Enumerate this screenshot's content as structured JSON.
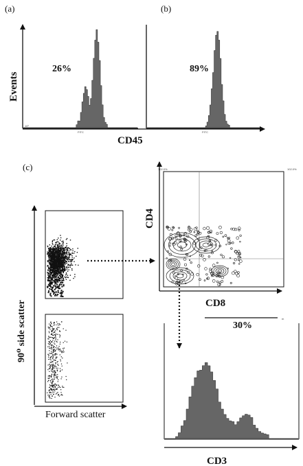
{
  "figure": {
    "panel_a": {
      "label": "(a)",
      "percent": "26%",
      "y_label": "Events",
      "x_label": "CD45",
      "hist": [
        0,
        0,
        0,
        0,
        0,
        0,
        0,
        0,
        0,
        0,
        0,
        0,
        0,
        0,
        0,
        0,
        0,
        0,
        0,
        0,
        0,
        0,
        0,
        0,
        0,
        0,
        0,
        0,
        0,
        0,
        0,
        0,
        0,
        0,
        0,
        0,
        0,
        0.02,
        0.05,
        0.1,
        0.18,
        0.28,
        0.36,
        0.42,
        0.38,
        0.3,
        0.26,
        0.32,
        0.5,
        0.72,
        0.9,
        1.0,
        0.92,
        0.72,
        0.45,
        0.24,
        0.1,
        0.04,
        0.01,
        0,
        0,
        0,
        0,
        0,
        0,
        0,
        0,
        0,
        0,
        0,
        0,
        0,
        0,
        0,
        0,
        0,
        0,
        0,
        0,
        0
      ]
    },
    "panel_b": {
      "label": "(b)",
      "percent": "89%",
      "hist": [
        0,
        0,
        0,
        0,
        0,
        0,
        0,
        0,
        0,
        0,
        0,
        0,
        0,
        0,
        0,
        0,
        0,
        0,
        0,
        0,
        0,
        0,
        0,
        0,
        0,
        0,
        0,
        0,
        0,
        0,
        0,
        0,
        0,
        0,
        0,
        0,
        0,
        0,
        0,
        0,
        0.01,
        0.03,
        0.06,
        0.12,
        0.22,
        0.38,
        0.6,
        0.82,
        0.97,
        1.0,
        0.9,
        0.7,
        0.48,
        0.3,
        0.15,
        0.07,
        0.03,
        0.01,
        0,
        0,
        0,
        0,
        0,
        0,
        0,
        0,
        0,
        0,
        0,
        0,
        0,
        0,
        0,
        0,
        0,
        0,
        0,
        0,
        0,
        0
      ]
    },
    "panel_c": {
      "label": "(c)",
      "scatter_y_label": "90⁰ side scatter",
      "scatter_x_label": "Forward scatter",
      "cd_y_label": "CD4",
      "cd_x_label": "CD8",
      "percent": "30%",
      "cd3_label": "CD3",
      "hist": [
        0,
        0,
        0,
        0,
        0.02,
        0.06,
        0.14,
        0.26,
        0.4,
        0.55,
        0.68,
        0.78,
        0.86,
        0.92,
        0.97,
        1.0,
        0.95,
        0.86,
        0.74,
        0.62,
        0.5,
        0.4,
        0.32,
        0.26,
        0.22,
        0.2,
        0.21,
        0.24,
        0.28,
        0.3,
        0.31,
        0.29,
        0.25,
        0.2,
        0.15,
        0.1,
        0.07,
        0.05,
        0.03,
        0.02,
        0.01,
        0.01,
        0,
        0,
        0,
        0,
        0,
        0,
        0,
        0
      ]
    }
  }
}
